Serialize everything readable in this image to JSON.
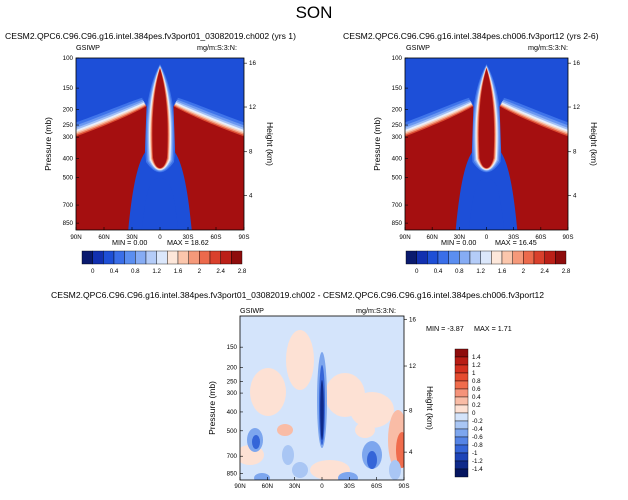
{
  "page_title": "SON",
  "chart_data": [
    {
      "type": "heatmap",
      "title": "CESM2.QPC6.C96.C96.g16.intel.384pes.fv3port01_03082019.ch002 (yrs 1)",
      "left_label": "GSIWP",
      "right_label": "mg/m:S:3:N:",
      "xlabel": "",
      "ylabel": "Pressure (mb)",
      "ylabel_right": "Height (km)",
      "x_ticks": [
        "90N",
        "60N",
        "30N",
        "0",
        "30S",
        "60S",
        "90S"
      ],
      "y_ticks": [
        "100",
        "150",
        "200",
        "250",
        "300",
        "400",
        "500",
        "700",
        "850"
      ],
      "y_ticks_right": [
        "16",
        "12",
        "8",
        "4"
      ],
      "min_label": "MIN =  0.00",
      "max_label": "MAX = 18.62",
      "min": 0.0,
      "max": 18.62
    },
    {
      "type": "heatmap",
      "title": "CESM2.QPC6.C96.C96.g16.intel.384pes.ch006.fv3port12 (yrs 2-6)",
      "left_label": "GSIWP",
      "right_label": "mg/m:S:3:N:",
      "xlabel": "",
      "ylabel": "Pressure (mb)",
      "ylabel_right": "Height (km)",
      "x_ticks": [
        "90N",
        "60N",
        "30N",
        "0",
        "30S",
        "60S",
        "90S"
      ],
      "y_ticks": [
        "100",
        "150",
        "200",
        "250",
        "300",
        "400",
        "500",
        "700",
        "850"
      ],
      "y_ticks_right": [
        "16",
        "12",
        "8",
        "4"
      ],
      "min_label": "MIN =  0.00",
      "max_label": "MAX = 16.45",
      "min": 0.0,
      "max": 16.45
    },
    {
      "type": "heatmap",
      "title": "CESM2.QPC6.C96.C96.g16.intel.384pes.fv3port01_03082019.ch002 - CESM2.QPC6.C96.C96.g16.intel.384pes.ch006.fv3port12",
      "left_label": "GSIWP",
      "right_label": "mg/m:S:3:N:",
      "ylabel": "Pressure (mb)",
      "ylabel_right": "Height (km)",
      "x_ticks": [
        "90N",
        "60N",
        "30N",
        "0",
        "30S",
        "60S",
        "90S"
      ],
      "y_ticks": [
        "150",
        "200",
        "250",
        "300",
        "400",
        "500",
        "700",
        "850"
      ],
      "y_ticks_right": [
        "16",
        "12",
        "8",
        "4"
      ],
      "min_label": "MIN =  -3.87",
      "max_label": "MAX =   1.71",
      "min": -3.87,
      "max": 1.71
    }
  ],
  "colorbar_abs": {
    "labels": [
      "0",
      "0.4",
      "0.8",
      "1.2",
      "1.6",
      "2",
      "2.4",
      "2.8"
    ],
    "colors": [
      "#0a1a6e",
      "#1230b0",
      "#1e4fd6",
      "#3a6ee8",
      "#5b8ef0",
      "#86acf4",
      "#b4ccf8",
      "#dbe7fb",
      "#fde7da",
      "#fbc6ac",
      "#f5997a",
      "#ec6a4c",
      "#d9402c",
      "#bb2018",
      "#8e0c0c"
    ]
  },
  "colorbar_diff": {
    "labels": [
      "1.4",
      "1.2",
      "1",
      "0.8",
      "0.6",
      "0.4",
      "0.2",
      "0",
      "-0.2",
      "-0.4",
      "-0.6",
      "-0.8",
      "-1",
      "-1.2",
      "-1.4"
    ],
    "colors": [
      "#8e0c0c",
      "#b81c14",
      "#d4301f",
      "#e54b2f",
      "#f06c4c",
      "#f5937a",
      "#f9bca6",
      "#fde1d4",
      "#d4e4fb",
      "#a9c6f4",
      "#7da6ee",
      "#5584e6",
      "#3565d8",
      "#1d44b8",
      "#0f2a8a",
      "#061660"
    ]
  }
}
